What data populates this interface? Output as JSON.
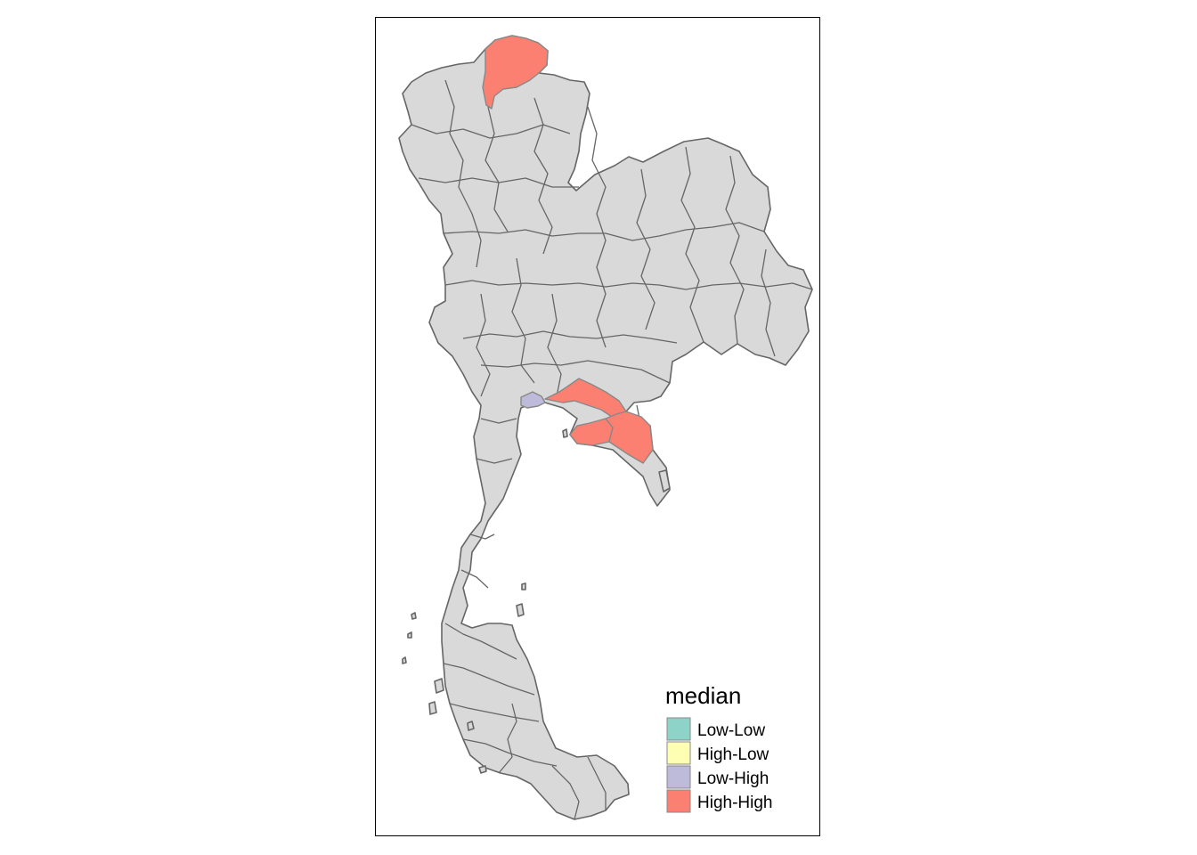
{
  "map": {
    "region_fill": "#D9D9D9",
    "border_color": "#666666",
    "frame_color": "#000000"
  },
  "legend": {
    "title": "median",
    "items": [
      {
        "label": "Low-Low",
        "color": "#8DD3C7"
      },
      {
        "label": "High-Low",
        "color": "#FFFFB3"
      },
      {
        "label": "Low-High",
        "color": "#BEBADA"
      },
      {
        "label": "High-High",
        "color": "#FB8072"
      }
    ]
  },
  "highlighted_regions": [
    {
      "category": "High-High",
      "location": "northern tip"
    },
    {
      "category": "Low-High",
      "location": "upper gulf, west side"
    },
    {
      "category": "High-High",
      "location": "upper gulf, east coast"
    },
    {
      "category": "High-High",
      "location": "eastern seaboard"
    }
  ]
}
